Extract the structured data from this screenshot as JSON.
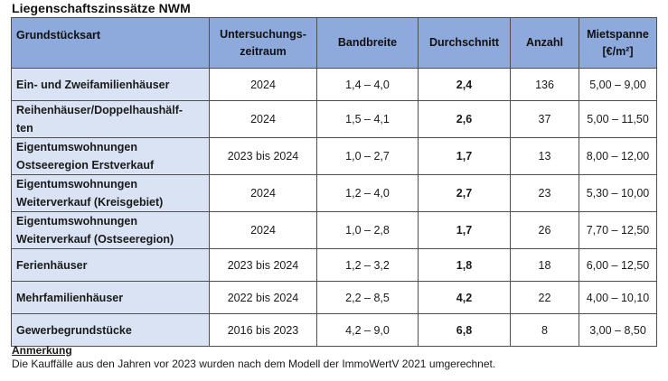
{
  "title": "Liegenschaftszinssätze NWM",
  "columns": [
    "Grundstücksart",
    "Untersuchungs-\nzeitraum",
    "Bandbreite",
    "Durchschnitt",
    "Anzahl",
    "Mietspanne\n[€/m²]"
  ],
  "rows": [
    {
      "type": "Ein- und Zweifamilienhäuser",
      "period": "2024",
      "range": "1,4 – 4,0",
      "avg": "2,4",
      "count": "136",
      "rent": "5,00 – 9,00"
    },
    {
      "type": "Reihenhäuser/Doppelhaushälf-\nten",
      "period": "2024",
      "range": "1,5 – 4,1",
      "avg": "2,6",
      "count": "37",
      "rent": "5,00 – 11,50"
    },
    {
      "type": "Eigentumswohnungen\nOstseeregion Erstverkauf",
      "period": "2023 bis 2024",
      "range": "1,0 – 2,7",
      "avg": "1,7",
      "count": "13",
      "rent": "8,00 – 12,00"
    },
    {
      "type": "Eigentumswohnungen\nWeiterverkauf (Kreisgebiet)",
      "period": "2024",
      "range": "1,2 – 4,0",
      "avg": "2,7",
      "count": "23",
      "rent": "5,30 – 10,00"
    },
    {
      "type": "Eigentumswohnungen\nWeiterverkauf (Ostseeregion)",
      "period": "2024",
      "range": "1,0 – 2,8",
      "avg": "1,7",
      "count": "26",
      "rent": "7,70 – 12,50"
    },
    {
      "type": "Ferienhäuser",
      "period": "2023 bis 2024",
      "range": "1,2 – 3,2",
      "avg": "1,8",
      "count": "18",
      "rent": "6,00 – 12,50"
    },
    {
      "type": "Mehrfamilienhäuser",
      "period": "2022 bis 2024",
      "range": "2,2 – 8,5",
      "avg": "4,2",
      "count": "22",
      "rent": "4,00 – 10,10"
    },
    {
      "type": "Gewerbegrundstücke",
      "period": "2016 bis 2023",
      "range": "4,2 – 9,0",
      "avg": "6,8",
      "count": "8",
      "rent": "3,00 – 8,50"
    }
  ],
  "note": {
    "heading": "Anmerkung",
    "text": "Die Kauffälle aus den Jahren vor 2023 wurden nach dem Modell der ImmoWertV 2021 umgerechnet."
  },
  "colors": {
    "header_bg": "#8ea9db",
    "label_bg": "#dae3f3",
    "border": "#4f4f4f"
  }
}
